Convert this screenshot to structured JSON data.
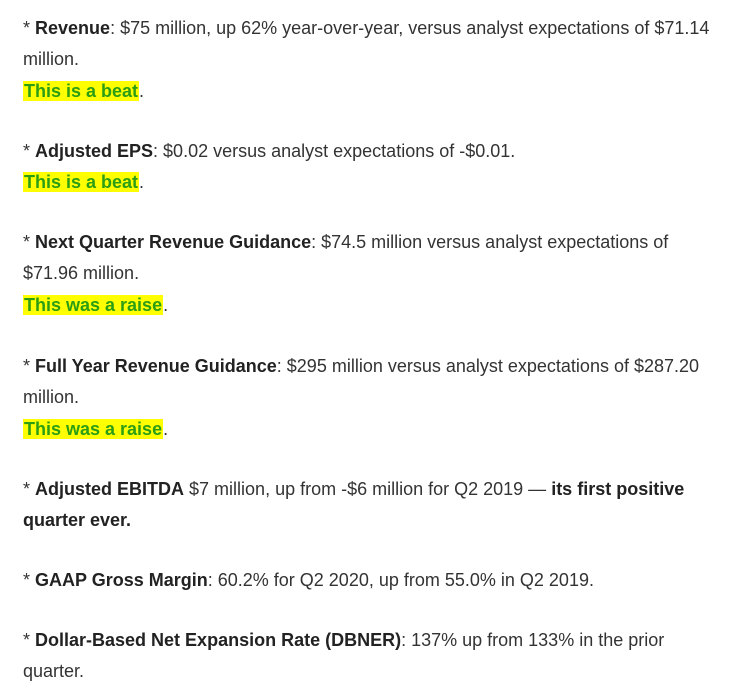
{
  "colors": {
    "text": "#333333",
    "highlight_background": "#ffff00",
    "highlight_text": "#2c9e14"
  },
  "items": [
    {
      "label": "Revenue",
      "text": ": $75 million, up 62% year-over-year, versus analyst expectations of $71.14 million.",
      "verdict": "This is a beat",
      "verdict_end": "."
    },
    {
      "label": "Adjusted EPS",
      "text": ": $0.02 versus analyst expectations of -$0.01.",
      "verdict": "This is a beat",
      "verdict_end": "."
    },
    {
      "label": "Next Quarter Revenue Guidance",
      "text": ": $74.5 million versus analyst expectations of $71.96 million.",
      "verdict": "This was a raise",
      "verdict_end": "."
    },
    {
      "label": "Full Year Revenue Guidance",
      "text": ": $295 million versus analyst expectations of $287.20 million.",
      "verdict": "This was a raise",
      "verdict_end": "."
    },
    {
      "label": "Adjusted EBITDA",
      "text": " $7 million, up from -$6 million for Q2 2019 — ",
      "bold_tail": "its first positive quarter ever."
    },
    {
      "label": "GAAP Gross Margin",
      "text": ": 60.2% for Q2 2020, up from 55.0% in Q2 2019."
    },
    {
      "label": "Dollar-Based Net Expansion Rate (DBNER)",
      "text": ": 137% up from 133% in the prior quarter."
    }
  ],
  "bullet": "* "
}
